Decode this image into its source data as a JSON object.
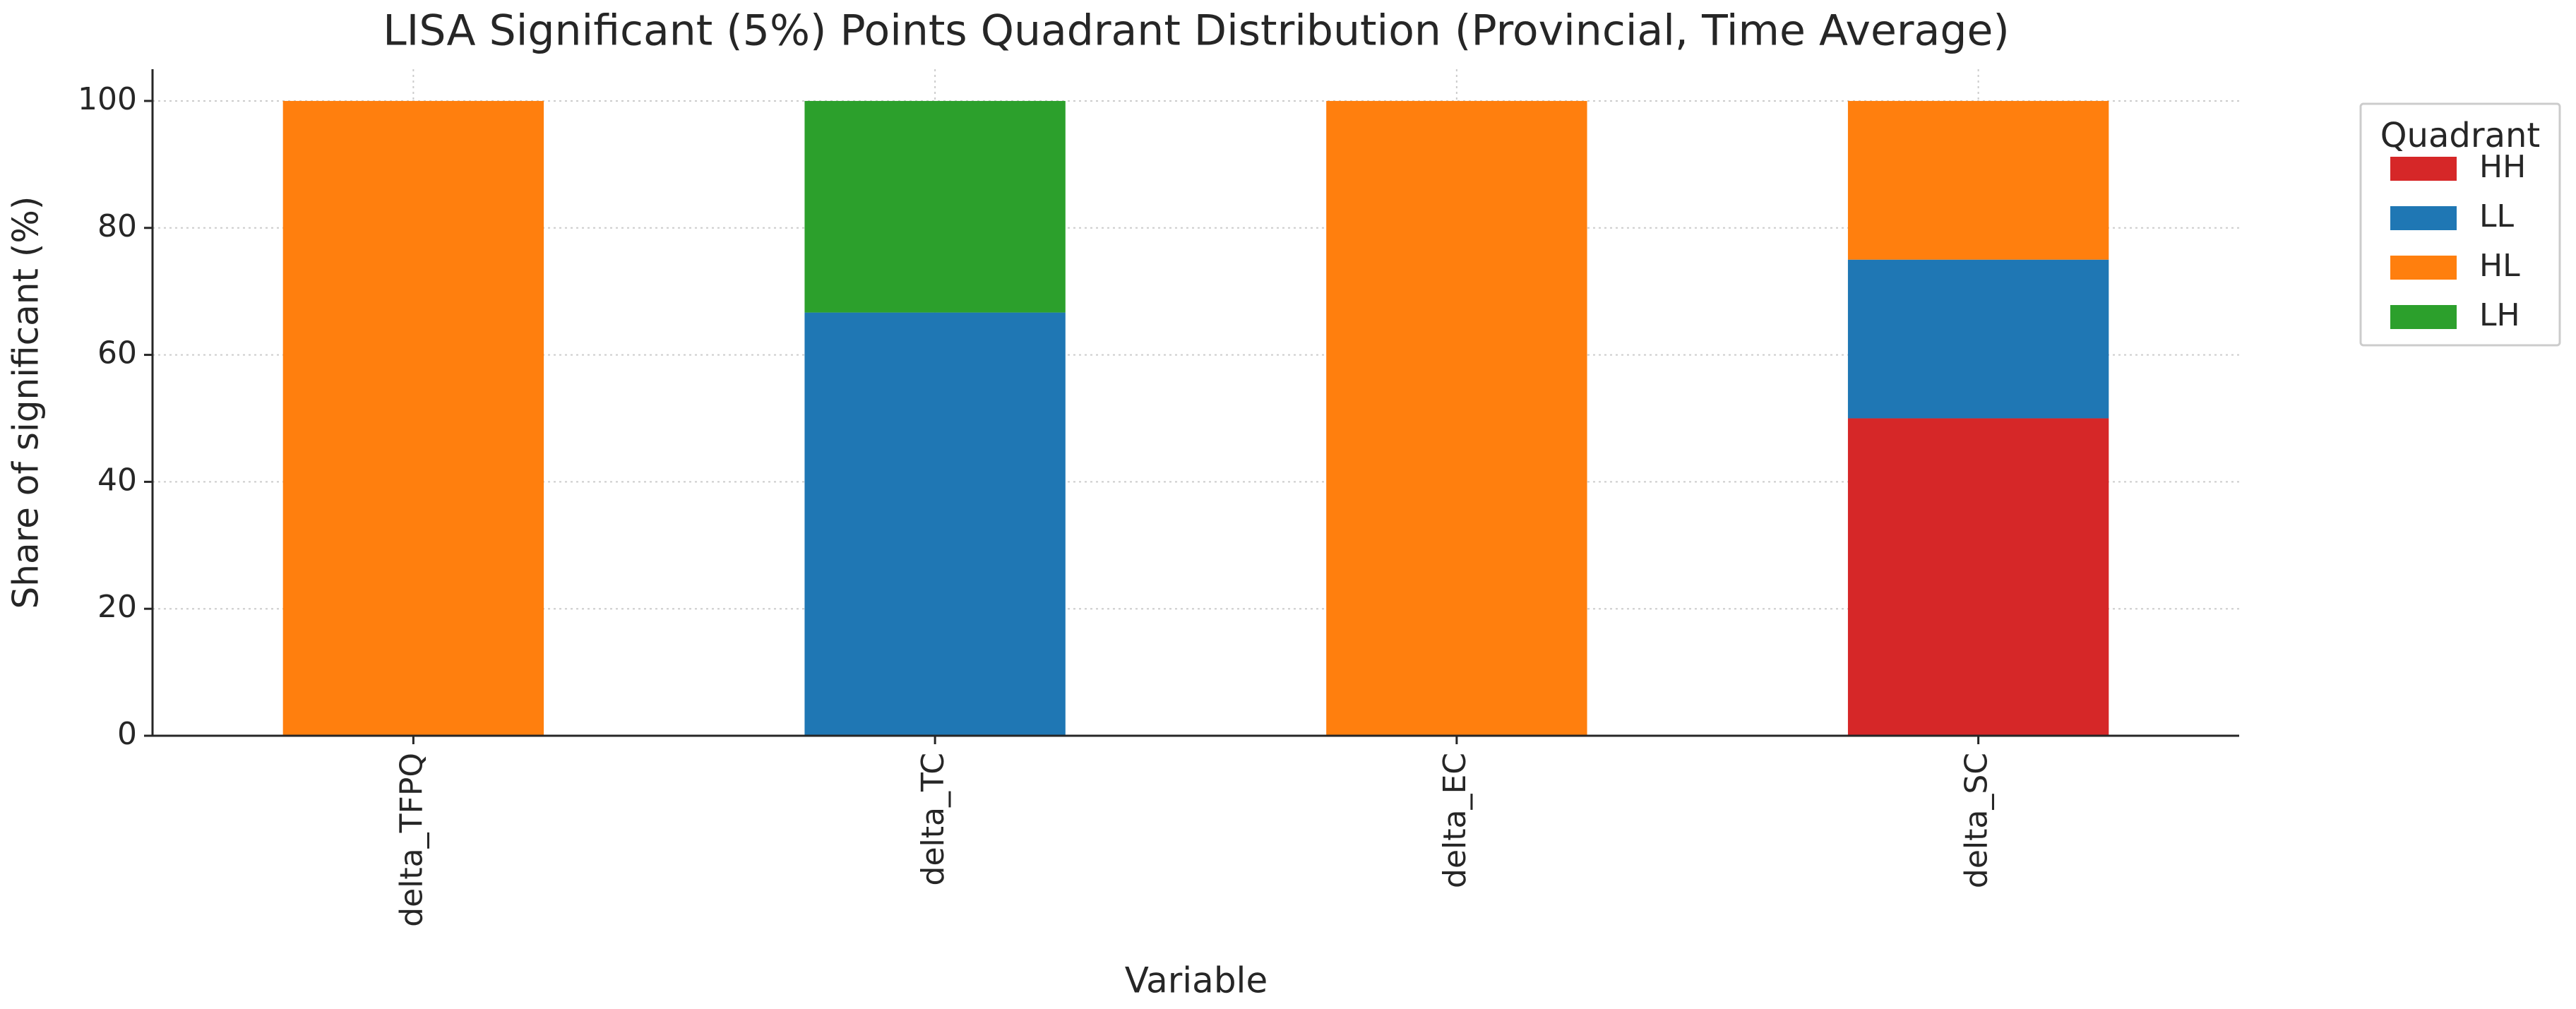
{
  "chart_data": {
    "type": "stacked_bar",
    "title": "LISA Significant (5%) Points Quadrant Distribution (Provincial, Time Average)",
    "x_label": "Variable",
    "y_label": "Share of significant (%)",
    "categories": [
      "delta_TFPQ",
      "delta_TC",
      "delta_EC",
      "delta_SC"
    ],
    "series": [
      {
        "name": "HH",
        "color": "#d62728",
        "values": [
          0,
          0,
          0,
          50
        ]
      },
      {
        "name": "LL",
        "color": "#1f77b4",
        "values": [
          0,
          66.67,
          0,
          25
        ]
      },
      {
        "name": "HL",
        "color": "#ff7f0e",
        "values": [
          100,
          0,
          100,
          25
        ]
      },
      {
        "name": "LH",
        "color": "#2ca02c",
        "values": [
          0,
          33.33,
          0,
          0
        ]
      }
    ],
    "ylim": [
      0,
      105
    ],
    "yticks": [
      0,
      20,
      40,
      60,
      80,
      100
    ],
    "grid": true,
    "legend_title": "Quadrant",
    "legend_position": "outside-right"
  }
}
